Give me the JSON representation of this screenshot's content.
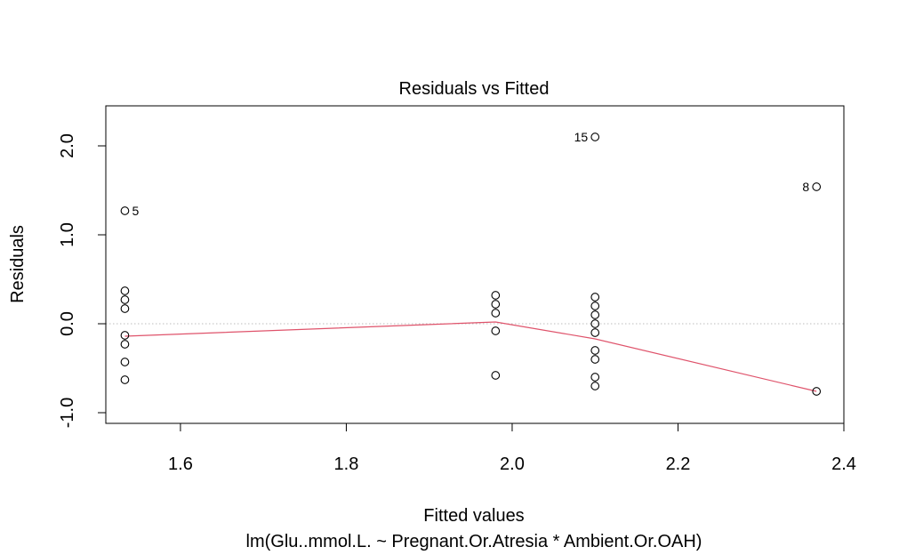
{
  "chart_data": {
    "type": "scatter",
    "title": "Residuals vs Fitted",
    "xlabel": "Fitted values",
    "ylabel": "Residuals",
    "subtitle": "lm(Glu..mmol.L. ~ Pregnant.Or.Atresia * Ambient.Or.OAH)",
    "xlim": [
      1.51,
      2.4
    ],
    "ylim": [
      -1.12,
      2.45
    ],
    "x_ticks": [
      1.6,
      1.8,
      2.0,
      2.2,
      2.4
    ],
    "x_tick_labels": [
      "1.6",
      "1.8",
      "2.0",
      "2.2",
      "2.4"
    ],
    "y_ticks": [
      -1.0,
      0.0,
      1.0,
      2.0
    ],
    "y_tick_labels": [
      "-1.0",
      "0.0",
      "1.0",
      "2.0"
    ],
    "reference_line_y": 0,
    "points": [
      {
        "x": 1.533,
        "y": 1.27,
        "label": "5"
      },
      {
        "x": 1.533,
        "y": 0.37
      },
      {
        "x": 1.533,
        "y": 0.27
      },
      {
        "x": 1.533,
        "y": 0.17
      },
      {
        "x": 1.533,
        "y": -0.13
      },
      {
        "x": 1.533,
        "y": -0.23
      },
      {
        "x": 1.533,
        "y": -0.43
      },
      {
        "x": 1.533,
        "y": -0.63
      },
      {
        "x": 1.98,
        "y": 0.32
      },
      {
        "x": 1.98,
        "y": 0.22
      },
      {
        "x": 1.98,
        "y": 0.12
      },
      {
        "x": 1.98,
        "y": -0.08
      },
      {
        "x": 1.98,
        "y": -0.58
      },
      {
        "x": 2.1,
        "y": 2.1,
        "label": "15"
      },
      {
        "x": 2.1,
        "y": 0.3
      },
      {
        "x": 2.1,
        "y": 0.2
      },
      {
        "x": 2.1,
        "y": 0.1
      },
      {
        "x": 2.1,
        "y": 0.0
      },
      {
        "x": 2.1,
        "y": -0.1
      },
      {
        "x": 2.1,
        "y": -0.3
      },
      {
        "x": 2.1,
        "y": -0.4
      },
      {
        "x": 2.1,
        "y": -0.6
      },
      {
        "x": 2.1,
        "y": -0.7
      },
      {
        "x": 2.367,
        "y": 1.54,
        "label": "8"
      },
      {
        "x": 2.367,
        "y": -0.76
      }
    ],
    "smooth_line": [
      {
        "x": 1.533,
        "y": -0.14
      },
      {
        "x": 1.98,
        "y": 0.02
      },
      {
        "x": 2.1,
        "y": -0.17
      },
      {
        "x": 2.367,
        "y": -0.76
      }
    ],
    "colors": {
      "points": "#000000",
      "smooth": "#DF536B",
      "reference": "#BEBEBE"
    }
  }
}
